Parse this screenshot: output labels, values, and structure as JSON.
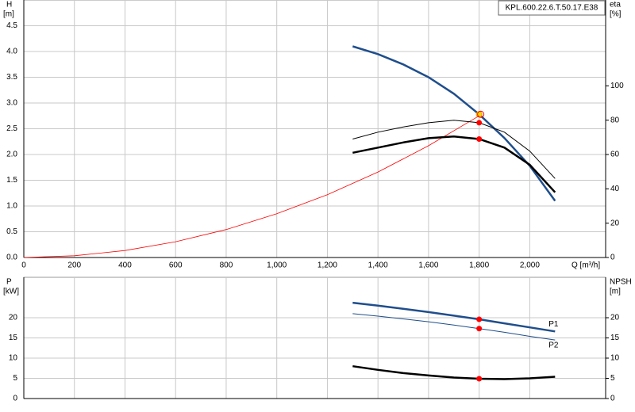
{
  "chart_data": [
    {
      "type": "line",
      "title": "KPL.600.22.6.T.50.17.E38",
      "ylabel": "H",
      "yunit": "[m]",
      "y2label": "eta",
      "y2unit": "[%]",
      "xlabel": "Q [m³/h]",
      "xlim": [
        0,
        2300
      ],
      "xticks": [
        0,
        200,
        400,
        600,
        800,
        {
          "value": 1000,
          "label": "1,000"
        },
        {
          "value": 1200,
          "label": "1,200"
        },
        {
          "value": 1400,
          "label": "1,400"
        },
        {
          "value": 1600,
          "label": "1,600"
        },
        {
          "value": 1800,
          "label": "1,800"
        },
        {
          "value": 2000,
          "label": "2,000"
        }
      ],
      "ylim": [
        0,
        5
      ],
      "yticks": [
        {
          "value": 0,
          "label": "0.0"
        },
        0.5,
        {
          "value": 1,
          "label": "1.0"
        },
        1.5,
        {
          "value": 2,
          "label": "2.0"
        },
        2.5,
        {
          "value": 3,
          "label": "3.0"
        },
        3.5,
        {
          "value": 4,
          "label": "4.0"
        },
        4.5
      ],
      "y2lim": [
        0,
        150
      ],
      "y2ticks": [
        0,
        20,
        40,
        60,
        80,
        100
      ],
      "grid": true,
      "duty_x": 1800,
      "series": [
        {
          "color": "#1f4e8c",
          "width": 2.5,
          "marker_color": "#ffd700",
          "x": [
            1300,
            1400,
            1500,
            1600,
            1700,
            1800,
            1900,
            2000,
            2100
          ],
          "values": [
            4.1,
            3.95,
            3.75,
            3.5,
            3.18,
            2.78,
            2.32,
            1.78,
            1.1
          ]
        },
        {
          "color": "#ff0000",
          "width": 0.8,
          "marker": "ring",
          "x": [
            0,
            200,
            400,
            600,
            800,
            1000,
            1200,
            1400,
            1600,
            1800
          ],
          "values": [
            0,
            0.034,
            0.136,
            0.306,
            0.543,
            0.849,
            1.22,
            1.66,
            2.17,
            2.75
          ]
        },
        {
          "color": "#000000",
          "width": 1,
          "axis": "y2",
          "marker_color": "#ff0000",
          "x": [
            1300,
            1400,
            1500,
            1600,
            1700,
            1800,
            1900,
            2000,
            2100
          ],
          "values": [
            69,
            73,
            76,
            78.5,
            80,
            78.5,
            73,
            62,
            46
          ]
        },
        {
          "color": "#000000",
          "width": 2.5,
          "axis": "y2",
          "marker_color": "#ff0000",
          "x": [
            1300,
            1400,
            1500,
            1600,
            1700,
            1800,
            1900,
            2000,
            2100
          ],
          "values": [
            61,
            64,
            67,
            69.5,
            70.5,
            69,
            64,
            54,
            38
          ]
        }
      ]
    },
    {
      "type": "line",
      "ylabel": "P",
      "yunit": "[kW]",
      "y2label": "NPSH",
      "y2unit": "[m]",
      "xlim": [
        0,
        2300
      ],
      "xticks": [
        0,
        200,
        400,
        600,
        800,
        1000,
        1200,
        1400,
        1600,
        1800,
        2000
      ],
      "xtick_labels": false,
      "ylim": [
        0,
        30
      ],
      "yticks": [
        0,
        5,
        10,
        15,
        20
      ],
      "y2lim": [
        0,
        30
      ],
      "y2ticks": [
        0,
        5,
        10,
        15,
        20
      ],
      "grid": true,
      "duty_x": 1800,
      "series": [
        {
          "name": "P1",
          "color": "#1f4e8c",
          "width": 2.5,
          "marker_color": "#ff0000",
          "x": [
            1300,
            1400,
            1500,
            1600,
            1700,
            1800,
            1900,
            2000,
            2100
          ],
          "values": [
            23.7,
            23.0,
            22.2,
            21.4,
            20.5,
            19.6,
            18.6,
            17.6,
            16.6
          ]
        },
        {
          "name": "P2",
          "color": "#1f4e8c",
          "width": 1,
          "marker_color": "#ff0000",
          "x": [
            1300,
            1400,
            1500,
            1600,
            1700,
            1800,
            1900,
            2000,
            2100
          ],
          "values": [
            21.0,
            20.4,
            19.7,
            19.0,
            18.2,
            17.3,
            16.4,
            15.4,
            14.5
          ]
        },
        {
          "color": "#000000",
          "width": 2.5,
          "axis": "y2",
          "marker_color": "#ff0000",
          "x": [
            1300,
            1400,
            1500,
            1600,
            1700,
            1800,
            1900,
            2000,
            2100
          ],
          "values": [
            8.0,
            7.1,
            6.3,
            5.7,
            5.2,
            4.9,
            4.8,
            5.0,
            5.4
          ]
        }
      ]
    }
  ]
}
